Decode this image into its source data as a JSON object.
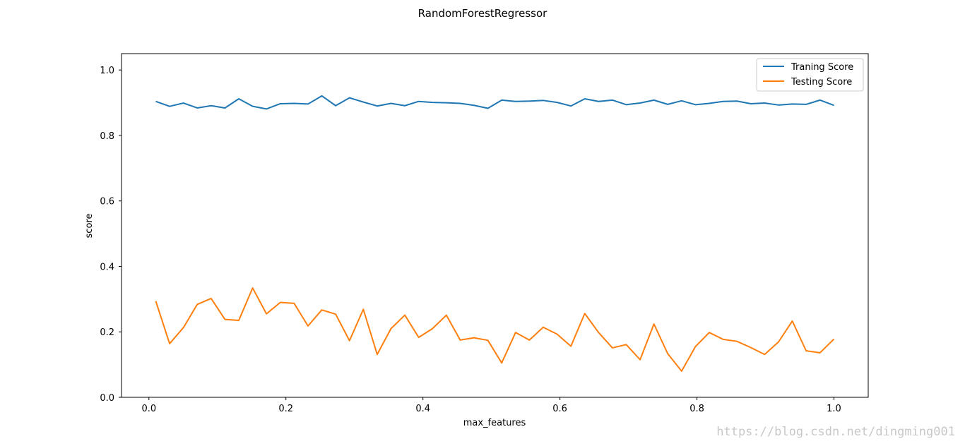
{
  "chart_data": {
    "type": "line",
    "title": "RandomForestRegressor",
    "xlabel": "max_features",
    "ylabel": "score",
    "xlim": [
      -0.04,
      1.05
    ],
    "ylim": [
      0.0,
      1.05
    ],
    "xticks": [
      0.0,
      0.2,
      0.4,
      0.6,
      0.8,
      1.0
    ],
    "xtick_labels": [
      "0.0",
      "0.2",
      "0.4",
      "0.6",
      "0.8",
      "1.0"
    ],
    "yticks": [
      0.0,
      0.2,
      0.4,
      0.6,
      0.8,
      1.0
    ],
    "ytick_labels": [
      "0.0",
      "0.2",
      "0.4",
      "0.6",
      "0.8",
      "1.0"
    ],
    "grid": false,
    "legend_position": "top-right",
    "x": [
      0.01,
      0.0302,
      0.0504,
      0.0706,
      0.0908,
      0.111,
      0.1312,
      0.1514,
      0.1716,
      0.1918,
      0.212,
      0.2322,
      0.2524,
      0.2726,
      0.2928,
      0.313,
      0.3332,
      0.3534,
      0.3736,
      0.3938,
      0.414,
      0.4342,
      0.4544,
      0.4746,
      0.4948,
      0.515,
      0.5352,
      0.5554,
      0.5756,
      0.5958,
      0.616,
      0.6362,
      0.6564,
      0.6766,
      0.6968,
      0.717,
      0.7372,
      0.7574,
      0.7776,
      0.7978,
      0.818,
      0.8382,
      0.8584,
      0.8786,
      0.8988,
      0.919,
      0.9392,
      0.9594,
      0.9796,
      1.0
    ],
    "series": [
      {
        "name": "Traning Score",
        "color": "#1f77b4",
        "values": [
          0.904,
          0.889,
          0.899,
          0.884,
          0.891,
          0.884,
          0.912,
          0.889,
          0.881,
          0.897,
          0.898,
          0.896,
          0.921,
          0.891,
          0.915,
          0.902,
          0.89,
          0.898,
          0.891,
          0.904,
          0.901,
          0.9,
          0.898,
          0.892,
          0.883,
          0.908,
          0.904,
          0.905,
          0.907,
          0.901,
          0.89,
          0.912,
          0.904,
          0.908,
          0.894,
          0.899,
          0.908,
          0.895,
          0.906,
          0.894,
          0.898,
          0.904,
          0.905,
          0.897,
          0.899,
          0.893,
          0.896,
          0.895,
          0.908,
          0.892
        ]
      },
      {
        "name": "Testing Score",
        "color": "#ff7f0e",
        "values": [
          0.294,
          0.164,
          0.213,
          0.284,
          0.302,
          0.238,
          0.235,
          0.334,
          0.255,
          0.29,
          0.287,
          0.218,
          0.267,
          0.254,
          0.173,
          0.269,
          0.131,
          0.21,
          0.251,
          0.183,
          0.21,
          0.251,
          0.175,
          0.182,
          0.174,
          0.105,
          0.198,
          0.175,
          0.214,
          0.193,
          0.156,
          0.256,
          0.198,
          0.151,
          0.161,
          0.115,
          0.224,
          0.133,
          0.08,
          0.155,
          0.198,
          0.177,
          0.171,
          0.152,
          0.131,
          0.169,
          0.233,
          0.142,
          0.136,
          0.178
        ]
      }
    ]
  },
  "watermark": "https://blog.csdn.net/dingming001"
}
